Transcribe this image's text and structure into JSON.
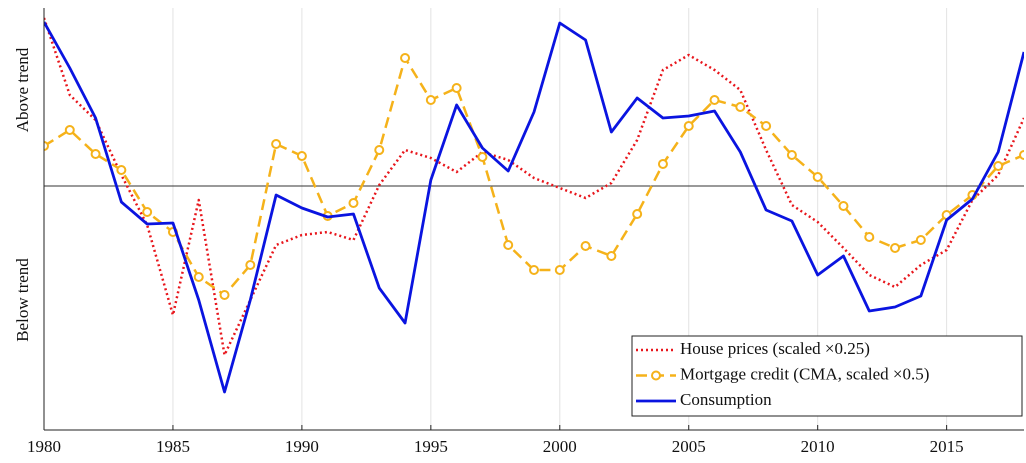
{
  "chart_data": {
    "type": "line",
    "ylabels": [
      "Above trend",
      "Below trend"
    ],
    "x": [
      1980,
      1981,
      1982,
      1983,
      1984,
      1985,
      1986,
      1987,
      1988,
      1989,
      1990,
      1991,
      1992,
      1993,
      1994,
      1995,
      1996,
      1997,
      1998,
      1999,
      2000,
      2001,
      2002,
      2003,
      2004,
      2005,
      2006,
      2007,
      2008,
      2009,
      2010,
      2011,
      2012,
      2013,
      2014,
      2015,
      2016,
      2017,
      2018
    ],
    "xlim": [
      1980,
      2018
    ],
    "xticks": [
      1980,
      1985,
      1990,
      1995,
      2000,
      2005,
      2010,
      2015
    ],
    "ylim": [
      -2.44,
      1.78
    ],
    "hline": 0,
    "grid": true,
    "legend": "lower right",
    "series": [
      {
        "name": "House prices (scaled ×0.25)",
        "color": "#e8161c",
        "style": "dotted",
        "values": [
          1.68,
          0.91,
          0.66,
          0.11,
          -0.39,
          -1.29,
          -0.14,
          -1.69,
          -1.14,
          -0.59,
          -0.49,
          -0.46,
          -0.54,
          0.01,
          0.36,
          0.28,
          0.14,
          0.34,
          0.26,
          0.08,
          -0.02,
          -0.12,
          0.03,
          0.46,
          1.16,
          1.31,
          1.16,
          0.96,
          0.36,
          -0.19,
          -0.36,
          -0.62,
          -0.89,
          -1.01,
          -0.79,
          -0.64,
          -0.14,
          0.11,
          0.68
        ]
      },
      {
        "name": "Mortgage credit (CMA, scaled ×0.5)",
        "color": "#f5b21a",
        "style": "dashed-circle",
        "values": [
          0.4,
          0.56,
          0.32,
          0.16,
          -0.26,
          -0.46,
          -0.91,
          -1.09,
          -0.79,
          0.42,
          0.3,
          -0.3,
          -0.17,
          0.36,
          1.28,
          0.86,
          0.98,
          0.29,
          -0.59,
          -0.84,
          -0.84,
          -0.6,
          -0.7,
          -0.28,
          0.22,
          0.6,
          0.86,
          0.79,
          0.6,
          0.31,
          0.09,
          -0.2,
          -0.51,
          -0.62,
          -0.54,
          -0.29,
          -0.09,
          0.2,
          0.31
        ]
      },
      {
        "name": "Consumption",
        "color": "#0a14e0",
        "style": "solid",
        "values": [
          1.64,
          1.18,
          0.68,
          -0.16,
          -0.38,
          -0.37,
          -1.14,
          -2.06,
          -1.14,
          -0.09,
          -0.22,
          -0.31,
          -0.28,
          -1.02,
          -1.37,
          0.06,
          0.81,
          0.38,
          0.15,
          0.74,
          1.63,
          1.46,
          0.54,
          0.88,
          0.68,
          0.7,
          0.75,
          0.34,
          -0.24,
          -0.35,
          -0.89,
          -0.7,
          -1.25,
          -1.21,
          -1.1,
          -0.34,
          -0.13,
          0.34,
          1.34
        ]
      }
    ]
  }
}
